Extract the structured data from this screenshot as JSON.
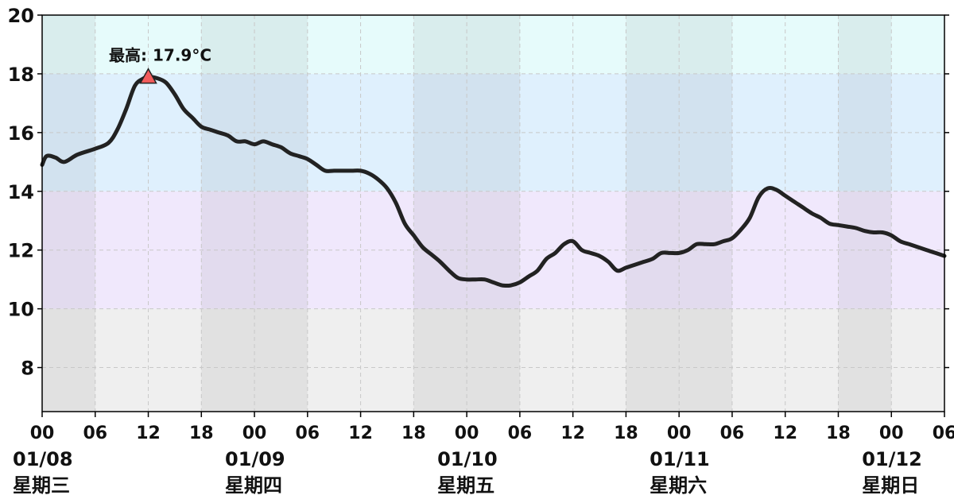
{
  "chart_data": {
    "type": "line",
    "title": "",
    "xlabel": "",
    "ylabel": "",
    "ylim": [
      6.5,
      20
    ],
    "y_ticks": [
      8,
      10,
      12,
      14,
      16,
      18,
      20
    ],
    "x_hour_range": [
      0,
      102
    ],
    "x_ticks": [
      {
        "hour": 0,
        "label": "00"
      },
      {
        "hour": 6,
        "label": "06"
      },
      {
        "hour": 12,
        "label": "12"
      },
      {
        "hour": 18,
        "label": "18"
      },
      {
        "hour": 24,
        "label": "00"
      },
      {
        "hour": 30,
        "label": "06"
      },
      {
        "hour": 36,
        "label": "12"
      },
      {
        "hour": 42,
        "label": "18"
      },
      {
        "hour": 48,
        "label": "00"
      },
      {
        "hour": 54,
        "label": "06"
      },
      {
        "hour": 60,
        "label": "12"
      },
      {
        "hour": 66,
        "label": "18"
      },
      {
        "hour": 72,
        "label": "00"
      },
      {
        "hour": 78,
        "label": "06"
      },
      {
        "hour": 84,
        "label": "12"
      },
      {
        "hour": 90,
        "label": "18"
      },
      {
        "hour": 96,
        "label": "00"
      },
      {
        "hour": 102,
        "label": "06"
      }
    ],
    "days": [
      {
        "hour": 0,
        "date": "01/08",
        "weekday": "星期三"
      },
      {
        "hour": 24,
        "date": "01/09",
        "weekday": "星期四"
      },
      {
        "hour": 48,
        "date": "01/10",
        "weekday": "星期五"
      },
      {
        "hour": 72,
        "date": "01/11",
        "weekday": "星期六"
      },
      {
        "hour": 96,
        "date": "01/12",
        "weekday": "星期日"
      }
    ],
    "temperature_bands": [
      {
        "from": 6.5,
        "to": 10,
        "color": "#efefef"
      },
      {
        "from": 10,
        "to": 14,
        "color": "#f0e8fc"
      },
      {
        "from": 14,
        "to": 18,
        "color": "#dff0fd"
      },
      {
        "from": 18,
        "to": 20,
        "color": "#e6fbfb"
      }
    ],
    "night_shading_hours": [
      [
        0,
        6
      ],
      [
        18,
        30
      ],
      [
        42,
        54
      ],
      [
        66,
        78
      ],
      [
        90,
        96
      ]
    ],
    "grid": true,
    "series": [
      {
        "color": "#222222",
        "x": [
          0,
          0.5,
          1.5,
          2.5,
          4,
          6,
          7.5,
          8.5,
          9.5,
          10.5,
          11.5,
          12,
          13,
          14,
          15,
          16,
          17,
          18,
          19,
          20,
          21,
          22,
          23,
          24,
          25,
          26,
          27,
          28,
          29,
          30,
          31,
          32,
          33,
          34,
          35,
          36,
          37,
          38,
          39,
          40,
          41,
          42,
          43,
          44,
          45,
          46,
          47,
          48,
          49,
          50,
          51,
          52,
          53,
          54,
          55,
          56,
          57,
          58,
          59,
          60,
          61,
          62,
          63,
          64,
          65,
          66,
          67,
          68,
          69,
          70,
          71,
          72,
          73,
          74,
          75,
          76,
          77,
          78,
          79,
          80,
          81,
          82,
          83,
          84,
          85,
          86,
          87,
          88,
          89,
          90,
          91,
          92,
          93,
          94,
          95,
          96,
          97,
          98,
          99,
          100,
          101,
          102
        ],
        "values": [
          14.9,
          15.2,
          15.15,
          15.0,
          15.25,
          15.45,
          15.65,
          16.1,
          16.8,
          17.6,
          17.85,
          17.9,
          17.85,
          17.7,
          17.3,
          16.8,
          16.5,
          16.2,
          16.1,
          16.0,
          15.9,
          15.7,
          15.7,
          15.6,
          15.7,
          15.6,
          15.5,
          15.3,
          15.2,
          15.1,
          14.9,
          14.7,
          14.7,
          14.7,
          14.7,
          14.7,
          14.6,
          14.4,
          14.1,
          13.6,
          12.9,
          12.5,
          12.1,
          11.85,
          11.6,
          11.3,
          11.05,
          11.0,
          11.0,
          11.0,
          10.9,
          10.8,
          10.8,
          10.9,
          11.1,
          11.3,
          11.7,
          11.9,
          12.2,
          12.3,
          12.0,
          11.9,
          11.8,
          11.6,
          11.3,
          11.4,
          11.5,
          11.6,
          11.7,
          11.9,
          11.9,
          11.9,
          12.0,
          12.2,
          12.2,
          12.2,
          12.3,
          12.4,
          12.7,
          13.1,
          13.8,
          14.1,
          14.05,
          13.85,
          13.65,
          13.45,
          13.25,
          13.1,
          12.9,
          12.85,
          12.8,
          12.75,
          12.65,
          12.6,
          12.6,
          12.5,
          12.3,
          12.2,
          12.1,
          12.0,
          11.9,
          11.8
        ]
      }
    ],
    "annotations": [
      {
        "hour": 12,
        "value": 17.9,
        "text": "最高: 17.9°C",
        "marker": "triangle",
        "marker_color": "#f25c5c"
      }
    ]
  }
}
